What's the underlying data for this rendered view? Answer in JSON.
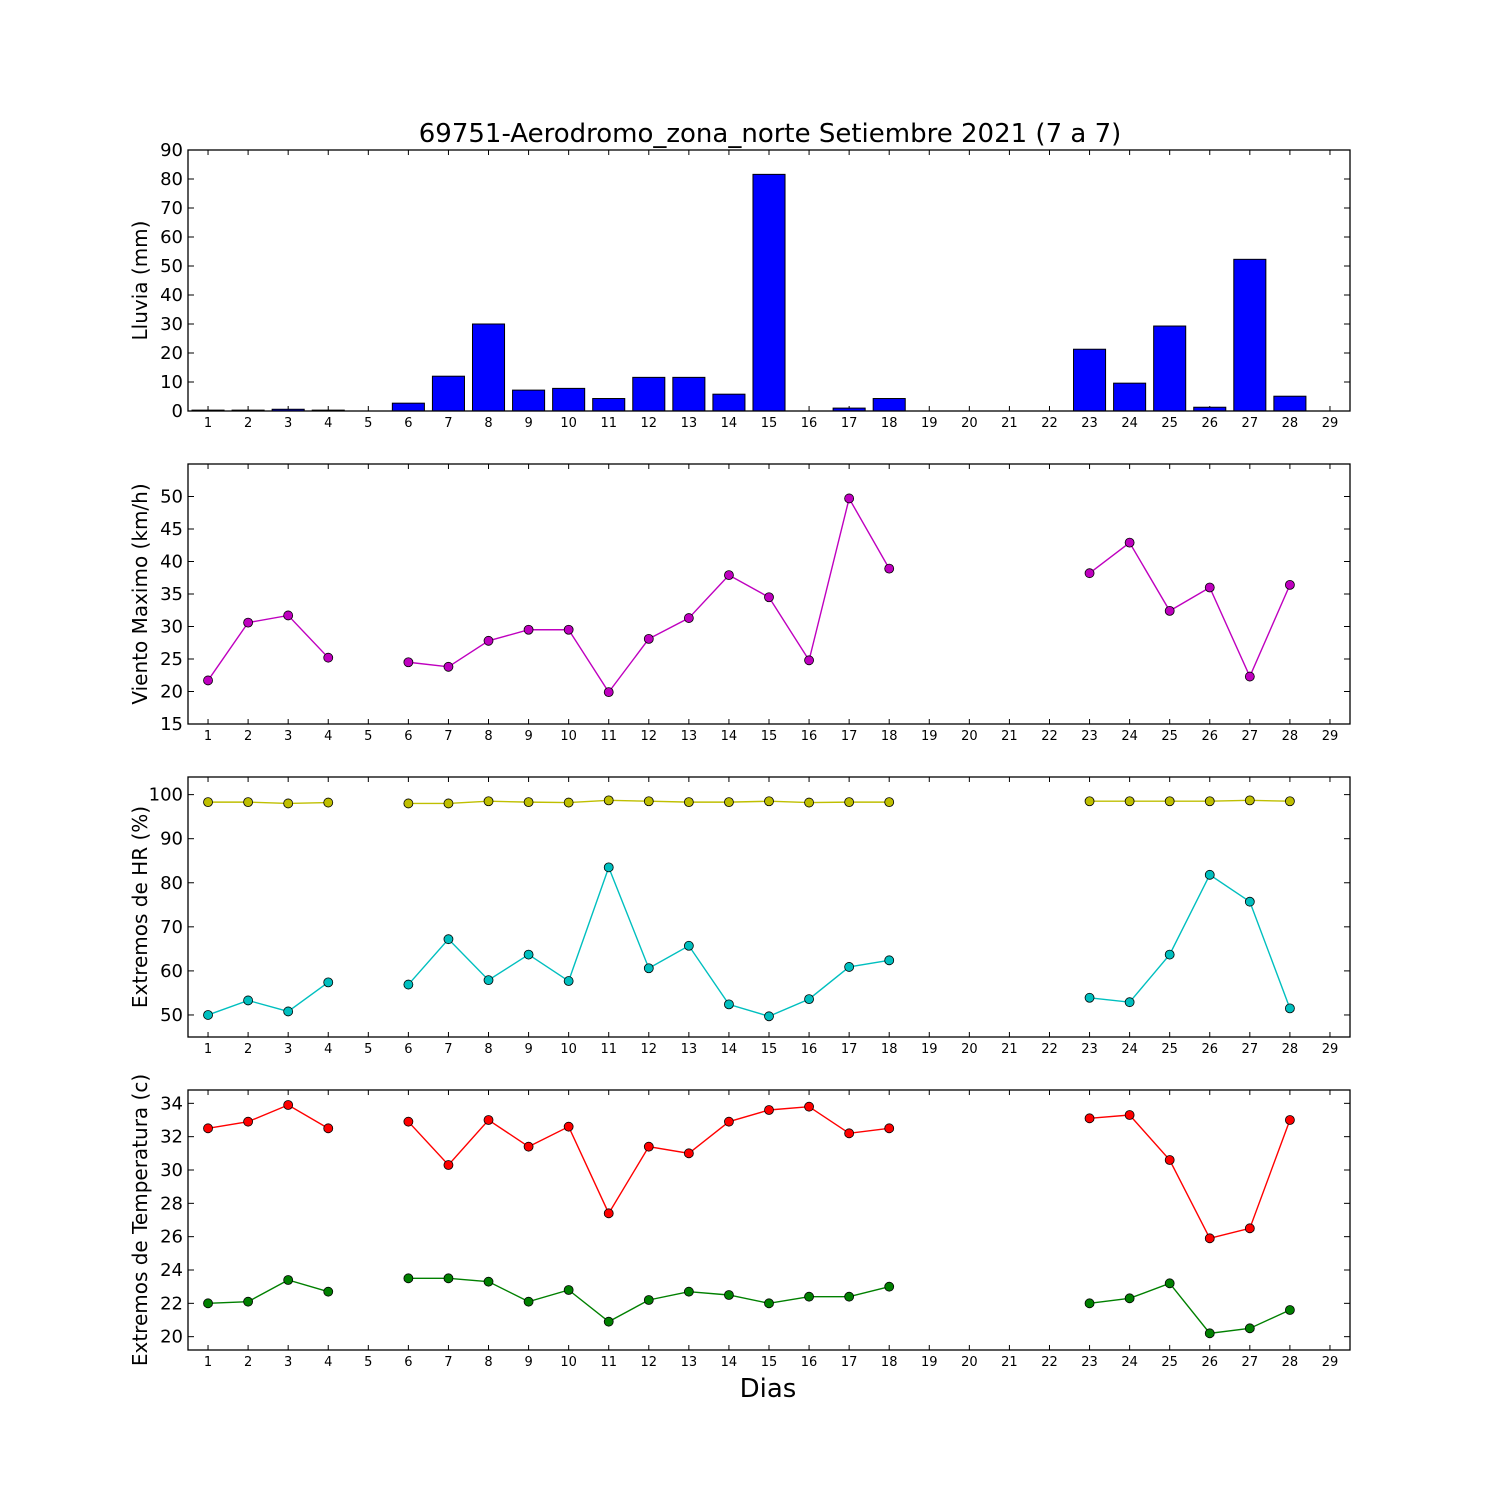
{
  "title": "69751-Aerodromo_zona_norte Setiembre 2021  (7 a 7)",
  "xlabel": "Dias",
  "colors": {
    "rain": "#0000ff",
    "wind": "#bf00bf",
    "hr_max": "#bfbf00",
    "hr_min": "#00bfbf",
    "temp_max": "#ff0000",
    "temp_min": "#008000"
  },
  "chart_data": [
    {
      "type": "bar",
      "ylabel": "Lluvia (mm)",
      "xlim": [
        0.5,
        29.5
      ],
      "ylim": [
        0,
        90
      ],
      "yticks": [
        0,
        10,
        20,
        30,
        40,
        50,
        60,
        70,
        80,
        90
      ],
      "xticks": [
        1,
        2,
        3,
        4,
        5,
        6,
        7,
        8,
        9,
        10,
        11,
        12,
        13,
        14,
        15,
        16,
        17,
        18,
        19,
        20,
        21,
        22,
        23,
        24,
        25,
        26,
        27,
        28,
        29
      ],
      "categories": [
        1,
        2,
        3,
        4,
        5,
        6,
        7,
        8,
        9,
        10,
        11,
        12,
        13,
        14,
        15,
        16,
        17,
        18,
        19,
        20,
        21,
        22,
        23,
        24,
        25,
        26,
        27,
        28
      ],
      "values": [
        0.3,
        0.3,
        0.6,
        0.3,
        0,
        2.7,
        12,
        30,
        7.2,
        7.8,
        4.3,
        11.6,
        11.6,
        5.8,
        81.6,
        0,
        1,
        4.3,
        0,
        0,
        0,
        0,
        21.3,
        9.6,
        29.3,
        1.3,
        52.3,
        5.1
      ],
      "color": "#0000ff"
    },
    {
      "type": "line",
      "ylabel": "Viento Maximo (km/h)",
      "xlim": [
        0.5,
        29.5
      ],
      "ylim": [
        15,
        55
      ],
      "yticks": [
        15,
        20,
        25,
        30,
        35,
        40,
        45,
        50
      ],
      "xticks": [
        1,
        2,
        3,
        4,
        5,
        6,
        7,
        8,
        9,
        10,
        11,
        12,
        13,
        14,
        15,
        16,
        17,
        18,
        19,
        20,
        21,
        22,
        23,
        24,
        25,
        26,
        27,
        28,
        29
      ],
      "x": [
        1,
        2,
        3,
        4,
        5,
        6,
        7,
        8,
        9,
        10,
        11,
        12,
        13,
        14,
        15,
        16,
        17,
        18,
        19,
        20,
        21,
        22,
        23,
        24,
        25,
        26,
        27,
        28
      ],
      "series": [
        {
          "values": [
            21.7,
            30.6,
            31.7,
            25.2,
            null,
            24.5,
            23.8,
            27.8,
            29.5,
            29.5,
            19.9,
            28.1,
            31.3,
            37.9,
            34.5,
            24.8,
            49.7,
            38.9,
            null,
            null,
            null,
            null,
            38.2,
            42.9,
            32.4,
            36,
            22.3,
            36.4
          ],
          "color": "#bf00bf"
        }
      ]
    },
    {
      "type": "line",
      "ylabel": "Extremos de HR (%)",
      "xlim": [
        0.5,
        29.5
      ],
      "ylim": [
        45,
        104
      ],
      "yticks": [
        50,
        60,
        70,
        80,
        90,
        100
      ],
      "xticks": [
        1,
        2,
        3,
        4,
        5,
        6,
        7,
        8,
        9,
        10,
        11,
        12,
        13,
        14,
        15,
        16,
        17,
        18,
        19,
        20,
        21,
        22,
        23,
        24,
        25,
        26,
        27,
        28,
        29
      ],
      "x": [
        1,
        2,
        3,
        4,
        5,
        6,
        7,
        8,
        9,
        10,
        11,
        12,
        13,
        14,
        15,
        16,
        17,
        18,
        19,
        20,
        21,
        22,
        23,
        24,
        25,
        26,
        27,
        28
      ],
      "series": [
        {
          "values": [
            98.3,
            98.3,
            98,
            98.2,
            null,
            98,
            98,
            98.5,
            98.3,
            98.2,
            98.7,
            98.5,
            98.3,
            98.3,
            98.5,
            98.2,
            98.3,
            98.3,
            null,
            null,
            null,
            null,
            98.5,
            98.5,
            98.5,
            98.5,
            98.7,
            98.5
          ],
          "color": "#bfbf00"
        },
        {
          "values": [
            50,
            53.3,
            50.8,
            57.4,
            null,
            56.9,
            67.2,
            57.9,
            63.7,
            57.7,
            83.5,
            60.6,
            65.7,
            52.4,
            49.7,
            53.6,
            60.9,
            62.4,
            null,
            null,
            null,
            null,
            53.9,
            52.9,
            63.7,
            81.8,
            75.7,
            51.5
          ],
          "color": "#00bfbf"
        }
      ]
    },
    {
      "type": "line",
      "ylabel": "Extremos de Temperatura (c)",
      "xlim": [
        0.5,
        29.5
      ],
      "ylim": [
        19.2,
        34.8
      ],
      "yticks": [
        20,
        22,
        24,
        26,
        28,
        30,
        32,
        34
      ],
      "xticks": [
        1,
        2,
        3,
        4,
        5,
        6,
        7,
        8,
        9,
        10,
        11,
        12,
        13,
        14,
        15,
        16,
        17,
        18,
        19,
        20,
        21,
        22,
        23,
        24,
        25,
        26,
        27,
        28,
        29
      ],
      "x": [
        1,
        2,
        3,
        4,
        5,
        6,
        7,
        8,
        9,
        10,
        11,
        12,
        13,
        14,
        15,
        16,
        17,
        18,
        19,
        20,
        21,
        22,
        23,
        24,
        25,
        26,
        27,
        28
      ],
      "series": [
        {
          "values": [
            32.5,
            32.9,
            33.9,
            32.5,
            null,
            32.9,
            30.3,
            33,
            31.4,
            32.6,
            27.4,
            31.4,
            31,
            32.9,
            33.6,
            33.8,
            32.2,
            32.5,
            null,
            null,
            null,
            null,
            33.1,
            33.3,
            30.6,
            25.9,
            26.5,
            33
          ],
          "color": "#ff0000"
        },
        {
          "values": [
            22,
            22.1,
            23.4,
            22.7,
            null,
            23.5,
            23.5,
            23.3,
            22.1,
            22.8,
            20.9,
            22.2,
            22.7,
            22.5,
            22,
            22.4,
            22.4,
            23,
            null,
            null,
            null,
            null,
            22,
            22.3,
            23.2,
            20.2,
            20.5,
            21.6
          ],
          "color": "#008000"
        }
      ]
    }
  ]
}
